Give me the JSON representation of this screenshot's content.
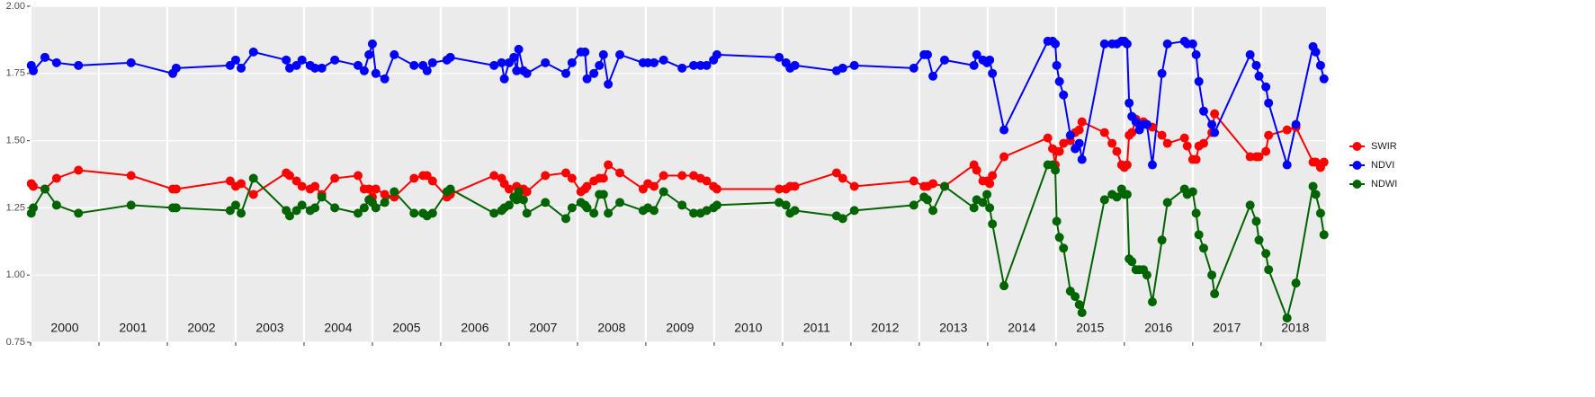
{
  "chart_data": {
    "type": "line",
    "x": [
      2000.01,
      2000.04,
      2000.21,
      2000.38,
      2000.7,
      2001.47,
      2002.08,
      2002.13,
      2002.92,
      2003,
      2003.08,
      2003.26,
      2003.74,
      2003.79,
      2003.89,
      2003.97,
      2004.09,
      2004.16,
      2004.26,
      2004.45,
      2004.79,
      2004.88,
      2004.95,
      2005,
      2005.05,
      2005.18,
      2005.32,
      2005.61,
      2005.74,
      2005.8,
      2005.88,
      2006.09,
      2006.14,
      2006.78,
      2006.89,
      2006.93,
      2007,
      2007.07,
      2007.11,
      2007.14,
      2007.21,
      2007.26,
      2007.53,
      2007.83,
      2007.92,
      2008.05,
      2008.11,
      2008.14,
      2008.24,
      2008.32,
      2008.38,
      2008.45,
      2008.62,
      2008.96,
      2009.03,
      2009.12,
      2009.26,
      2009.53,
      2009.7,
      2009.8,
      2009.89,
      2009.99,
      2010.04,
      2010.95,
      2011.05,
      2011.11,
      2011.18,
      2011.79,
      2011.88,
      2012.05,
      2012.92,
      2013.07,
      2013.12,
      2013.2,
      2013.37,
      2013.8,
      2013.84,
      2013.93,
      2013.99,
      2014.03,
      2014.07,
      2014.24,
      2014.88,
      2014.95,
      2014.99,
      2015.01,
      2015.05,
      2015.11,
      2015.21,
      2015.28,
      2015.34,
      2015.38,
      2015.71,
      2015.82,
      2015.89,
      2015.96,
      2016,
      2016.04,
      2016.07,
      2016.11,
      2016.17,
      2016.22,
      2016.28,
      2016.33,
      2016.41,
      2016.55,
      2016.63,
      2016.88,
      2016.92,
      2017,
      2017.05,
      2017.09,
      2017.16,
      2017.28,
      2017.32,
      2017.84,
      2017.93,
      2017.97,
      2018.07,
      2018.11,
      2018.38,
      2018.51,
      2018.76,
      2018.8,
      2018.87,
      2018.92
    ],
    "series": [
      {
        "name": "SWIR",
        "color": "#ff0000",
        "values": [
          1.34,
          1.33,
          1.32,
          1.36,
          1.39,
          1.37,
          1.32,
          1.32,
          1.35,
          1.33,
          1.34,
          1.3,
          1.38,
          1.37,
          1.35,
          1.33,
          1.32,
          1.33,
          1.3,
          1.36,
          1.37,
          1.32,
          1.32,
          1.29,
          1.32,
          1.3,
          1.29,
          1.36,
          1.37,
          1.37,
          1.35,
          1.29,
          1.3,
          1.37,
          1.36,
          1.34,
          1.32,
          1.29,
          1.33,
          1.3,
          1.32,
          1.31,
          1.37,
          1.38,
          1.36,
          1.31,
          1.32,
          1.33,
          1.35,
          1.36,
          1.36,
          1.41,
          1.38,
          1.32,
          1.34,
          1.33,
          1.37,
          1.37,
          1.37,
          1.36,
          1.35,
          1.33,
          1.32,
          1.32,
          1.32,
          1.33,
          1.33,
          1.38,
          1.36,
          1.33,
          1.35,
          1.33,
          1.33,
          1.34,
          1.33,
          1.41,
          1.39,
          1.35,
          1.35,
          1.34,
          1.37,
          1.44,
          1.51,
          1.47,
          1.41,
          1.46,
          1.46,
          1.49,
          1.5,
          1.53,
          1.54,
          1.57,
          1.53,
          1.49,
          1.46,
          1.41,
          1.4,
          1.41,
          1.52,
          1.53,
          1.58,
          1.56,
          1.57,
          1.56,
          1.55,
          1.52,
          1.49,
          1.51,
          1.48,
          1.43,
          1.43,
          1.48,
          1.49,
          1.53,
          1.6,
          1.44,
          1.44,
          1.44,
          1.46,
          1.52,
          1.54,
          1.55,
          1.42,
          1.42,
          1.4,
          1.42
        ]
      },
      {
        "name": "NDVI",
        "color": "#0000ff",
        "values": [
          1.78,
          1.76,
          1.81,
          1.79,
          1.78,
          1.79,
          1.75,
          1.77,
          1.78,
          1.8,
          1.77,
          1.83,
          1.8,
          1.77,
          1.78,
          1.8,
          1.78,
          1.77,
          1.77,
          1.8,
          1.78,
          1.76,
          1.82,
          1.86,
          1.75,
          1.73,
          1.82,
          1.78,
          1.78,
          1.76,
          1.79,
          1.8,
          1.81,
          1.78,
          1.79,
          1.73,
          1.79,
          1.81,
          1.76,
          1.84,
          1.76,
          1.75,
          1.79,
          1.75,
          1.79,
          1.83,
          1.83,
          1.73,
          1.75,
          1.78,
          1.82,
          1.71,
          1.82,
          1.79,
          1.79,
          1.79,
          1.8,
          1.77,
          1.78,
          1.78,
          1.78,
          1.8,
          1.82,
          1.81,
          1.79,
          1.77,
          1.78,
          1.76,
          1.77,
          1.78,
          1.77,
          1.82,
          1.82,
          1.74,
          1.8,
          1.78,
          1.82,
          1.8,
          1.79,
          1.8,
          1.75,
          1.54,
          1.87,
          1.87,
          1.86,
          1.78,
          1.72,
          1.67,
          1.52,
          1.47,
          1.49,
          1.43,
          1.86,
          1.86,
          1.86,
          1.87,
          1.87,
          1.86,
          1.64,
          1.59,
          1.57,
          1.54,
          1.56,
          1.56,
          1.41,
          1.75,
          1.86,
          1.87,
          1.86,
          1.86,
          1.82,
          1.72,
          1.61,
          1.56,
          1.53,
          1.82,
          1.78,
          1.74,
          1.7,
          1.64,
          1.41,
          1.56,
          1.85,
          1.83,
          1.78,
          1.73
        ]
      },
      {
        "name": "NDWI",
        "color": "#006400",
        "values": [
          1.23,
          1.25,
          1.32,
          1.26,
          1.23,
          1.26,
          1.25,
          1.25,
          1.24,
          1.26,
          1.23,
          1.36,
          1.24,
          1.22,
          1.24,
          1.26,
          1.24,
          1.25,
          1.29,
          1.25,
          1.23,
          1.25,
          1.28,
          1.27,
          1.25,
          1.27,
          1.31,
          1.23,
          1.23,
          1.22,
          1.23,
          1.31,
          1.32,
          1.23,
          1.24,
          1.25,
          1.26,
          1.29,
          1.28,
          1.31,
          1.28,
          1.23,
          1.27,
          1.21,
          1.25,
          1.27,
          1.26,
          1.25,
          1.23,
          1.3,
          1.3,
          1.23,
          1.27,
          1.24,
          1.25,
          1.24,
          1.31,
          1.26,
          1.23,
          1.23,
          1.24,
          1.25,
          1.26,
          1.27,
          1.26,
          1.23,
          1.24,
          1.22,
          1.21,
          1.24,
          1.26,
          1.29,
          1.28,
          1.24,
          1.33,
          1.25,
          1.28,
          1.27,
          1.3,
          1.25,
          1.19,
          0.96,
          1.41,
          1.41,
          1.39,
          1.2,
          1.14,
          1.1,
          0.94,
          0.92,
          0.89,
          0.86,
          1.28,
          1.3,
          1.29,
          1.32,
          1.3,
          1.3,
          1.06,
          1.05,
          1.02,
          1.02,
          1.02,
          1.0,
          0.9,
          1.13,
          1.27,
          1.32,
          1.3,
          1.31,
          1.23,
          1.15,
          1.1,
          1.0,
          0.93,
          1.26,
          1.2,
          1.13,
          1.08,
          1.02,
          0.84,
          0.97,
          1.33,
          1.3,
          1.23,
          1.15
        ]
      }
    ],
    "xlim": [
      2000,
      2018.95
    ],
    "xticks": [
      2000,
      2001,
      2002,
      2003,
      2004,
      2005,
      2006,
      2007,
      2008,
      2009,
      2010,
      2011,
      2012,
      2013,
      2014,
      2015,
      2016,
      2017,
      2018
    ],
    "ylim": [
      0.75,
      2.0
    ],
    "yticks": [
      {
        "value": 0.75,
        "label": "0.75"
      },
      {
        "value": 1.0,
        "label": "1.00"
      },
      {
        "value": 1.25,
        "label": "1.25"
      },
      {
        "value": 1.5,
        "label": "1.50"
      },
      {
        "value": 1.75,
        "label": "1.75"
      },
      {
        "value": 2.0,
        "label": "2.00"
      }
    ],
    "grid": true,
    "legend": "right"
  }
}
